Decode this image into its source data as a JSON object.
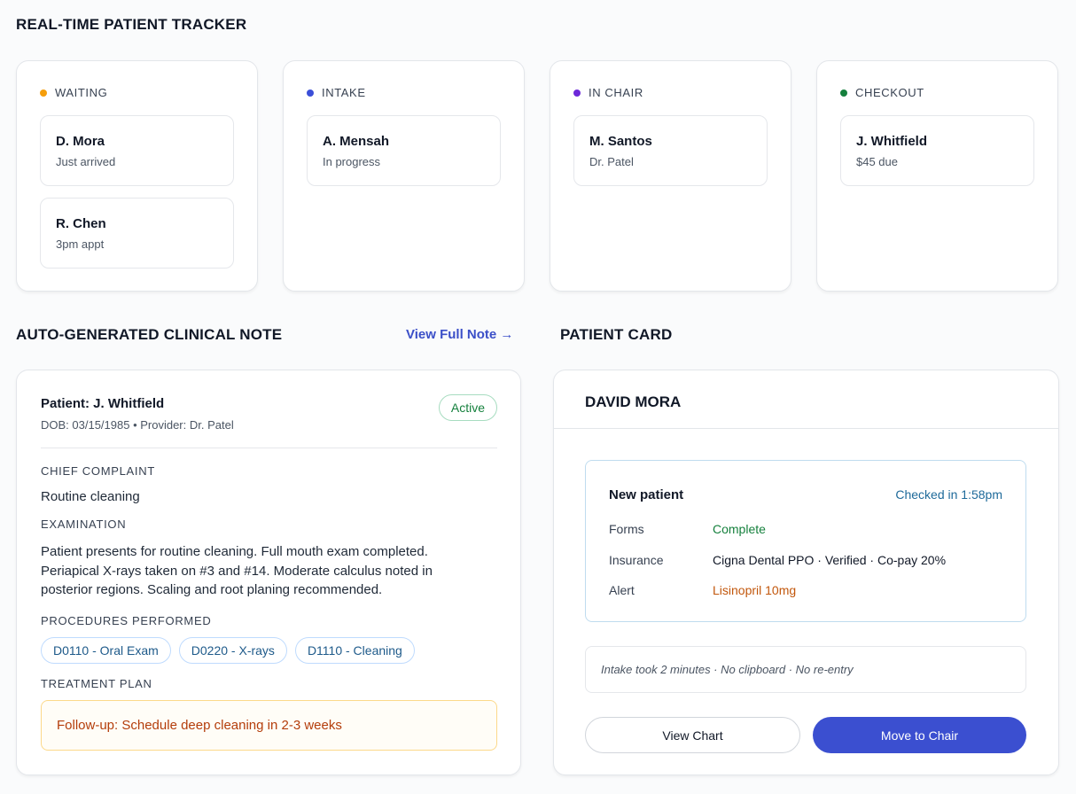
{
  "tracker": {
    "title": "REAL-TIME PATIENT TRACKER",
    "columns": [
      {
        "label": "WAITING",
        "patients": [
          {
            "name": "D. Mora",
            "detail": "Just arrived"
          },
          {
            "name": "R. Chen",
            "detail": "3pm appt"
          }
        ]
      },
      {
        "label": "INTAKE",
        "patients": [
          {
            "name": "A. Mensah",
            "detail": "In progress"
          }
        ]
      },
      {
        "label": "IN CHAIR",
        "patients": [
          {
            "name": "M. Santos",
            "detail": "Dr. Patel"
          }
        ]
      },
      {
        "label": "CHECKOUT",
        "patients": [
          {
            "name": "J. Whitfield",
            "detail": "$45 due"
          }
        ]
      }
    ]
  },
  "note": {
    "title": "AUTO-GENERATED CLINICAL NOTE",
    "link": "View Full Note →",
    "patient": "Patient: J. Whitfield",
    "meta": "DOB: 03/15/1985 • Provider: Dr. Patel",
    "badge": "Active",
    "sections": [
      {
        "heading": "CHIEF COMPLAINT",
        "text": "Routine cleaning"
      },
      {
        "heading": "EXAMINATION",
        "text": "Patient presents for routine cleaning. Full mouth exam completed. Periapical X-rays taken on #3 and #14. Moderate calculus noted in posterior regions. Scaling and root planing recommended."
      }
    ],
    "procedures_heading": "PROCEDURES PERFORMED",
    "procedures": [
      "D0110 - Oral Exam",
      "D0220 - X-rays",
      "D1110 - Cleaning"
    ],
    "plan_heading": "TREATMENT PLAN",
    "plan": "Follow-up: Schedule deep cleaning in 2-3 weeks"
  },
  "patient_card": {
    "title": "PATIENT CARD",
    "name": "DAVID MORA",
    "status": "New patient",
    "checked_in": "Checked in 1:58pm",
    "rows": [
      {
        "label": "Forms",
        "value": "Complete"
      },
      {
        "label": "Insurance",
        "value": "Cigna Dental PPO · Verified · Co-pay 20%"
      },
      {
        "label": "Alert",
        "value": "Lisinopril 10mg"
      }
    ],
    "intake_note": "Intake took 2 minutes · No clipboard · No re-entry",
    "buttons": [
      "View Chart",
      "Move to Chair"
    ]
  }
}
